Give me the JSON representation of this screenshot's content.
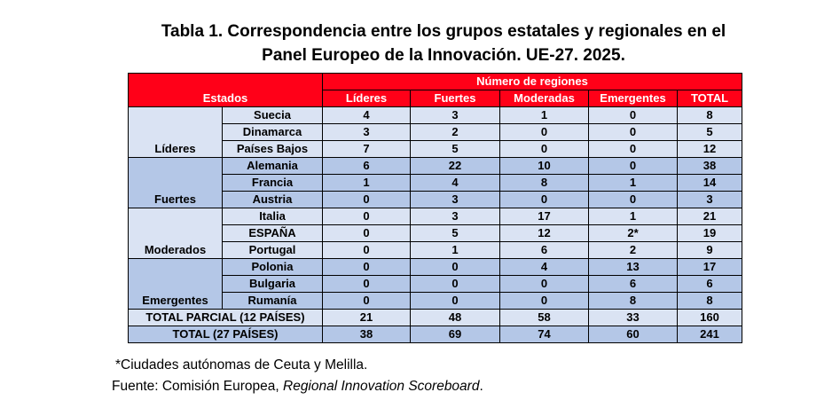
{
  "title": {
    "line1": "Tabla 1. Correspondencia entre los grupos estatales y regionales en el",
    "line2": "Panel Europeo de la Innovación. UE-27. 2025."
  },
  "header": {
    "estados": "Estados",
    "numero_regiones": "Número de regiones",
    "columns": [
      "Líderes",
      "Fuertes",
      "Moderadas",
      "Emergentes",
      "TOTAL"
    ]
  },
  "groups": [
    {
      "name": "Líderes",
      "shade": "light",
      "rows": [
        {
          "country": "Suecia",
          "values": [
            "4",
            "3",
            "1",
            "0",
            "8"
          ]
        },
        {
          "country": "Dinamarca",
          "values": [
            "3",
            "2",
            "0",
            "0",
            "5"
          ]
        },
        {
          "country": "Países Bajos",
          "values": [
            "7",
            "5",
            "0",
            "0",
            "12"
          ]
        }
      ]
    },
    {
      "name": "Fuertes",
      "shade": "dark",
      "rows": [
        {
          "country": "Alemania",
          "values": [
            "6",
            "22",
            "10",
            "0",
            "38"
          ]
        },
        {
          "country": "Francia",
          "values": [
            "1",
            "4",
            "8",
            "1",
            "14"
          ]
        },
        {
          "country": "Austria",
          "values": [
            "0",
            "3",
            "0",
            "0",
            "3"
          ]
        }
      ]
    },
    {
      "name": "Moderados",
      "shade": "light",
      "rows": [
        {
          "country": "Italia",
          "values": [
            "0",
            "3",
            "17",
            "1",
            "21"
          ]
        },
        {
          "country": "ESPAÑA",
          "values": [
            "0",
            "5",
            "12",
            "2*",
            "19"
          ]
        },
        {
          "country": "Portugal",
          "values": [
            "0",
            "1",
            "6",
            "2",
            "9"
          ]
        }
      ]
    },
    {
      "name": "Emergentes",
      "shade": "dark",
      "rows": [
        {
          "country": "Polonia",
          "values": [
            "0",
            "0",
            "4",
            "13",
            "17"
          ]
        },
        {
          "country": "Bulgaria",
          "values": [
            "0",
            "0",
            "0",
            "6",
            "6"
          ]
        },
        {
          "country": "Rumanía",
          "values": [
            "0",
            "0",
            "0",
            "8",
            "8"
          ]
        }
      ]
    }
  ],
  "totals": [
    {
      "label": "TOTAL PARCIAL (12 PAÍSES)",
      "shade": "light",
      "values": [
        "21",
        "48",
        "58",
        "33",
        "160"
      ]
    },
    {
      "label": "TOTAL (27 PAÍSES)",
      "shade": "dark",
      "values": [
        "38",
        "69",
        "74",
        "60",
        "241"
      ]
    }
  ],
  "footnote": "*Ciudades autónomas de Ceuta y Melilla.",
  "source": {
    "prefix": "Fuente: Comisión Europea, ",
    "italic": "Regional Innovation Scoreboard",
    "suffix": "."
  },
  "colors": {
    "header": "#ff0018",
    "light": "#dae3f3",
    "dark": "#b4c7e7"
  }
}
